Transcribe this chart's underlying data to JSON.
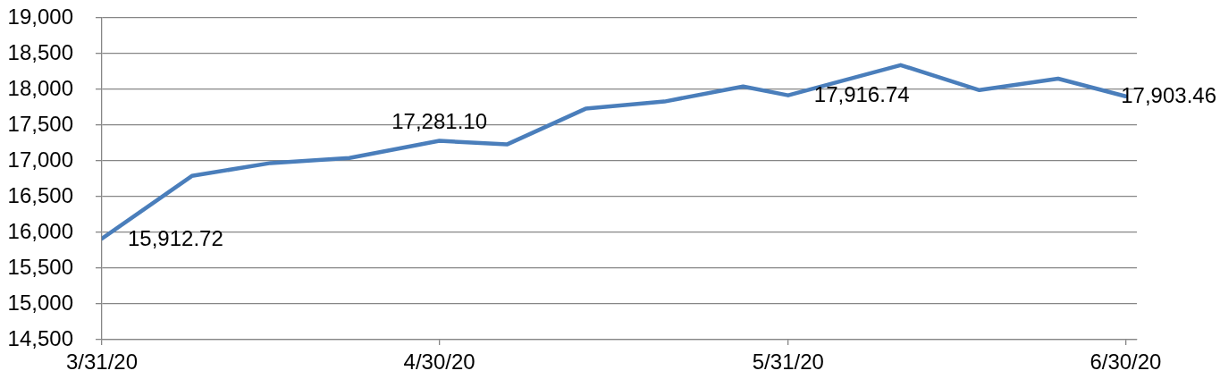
{
  "chart_data": {
    "type": "line",
    "x": [
      "2020-03-31",
      "2020-04-08",
      "2020-04-15",
      "2020-04-22",
      "2020-04-30",
      "2020-05-06",
      "2020-05-13",
      "2020-05-20",
      "2020-05-27",
      "2020-05-31",
      "2020-06-10",
      "2020-06-17",
      "2020-06-24",
      "2020-06-30"
    ],
    "series": [
      {
        "color": "#4a7ebb",
        "values": [
          15912.72,
          16790,
          16970,
          17040,
          17281.1,
          17230,
          17730,
          17830,
          18040,
          17916.74,
          18340,
          17990,
          18150,
          17903.46
        ],
        "value_labels": [
          "15,912.72",
          null,
          null,
          null,
          "17,281.10",
          null,
          null,
          null,
          null,
          "17,916.74",
          null,
          null,
          null,
          "17,903.46"
        ]
      }
    ],
    "xlim": [
      "2020-03-31",
      "2020-07-01"
    ],
    "xticks": [
      {
        "value": "2020-03-31",
        "label": "3/31/20"
      },
      {
        "value": "2020-04-30",
        "label": "4/30/20"
      },
      {
        "value": "2020-05-31",
        "label": "5/31/20"
      },
      {
        "value": "2020-06-30",
        "label": "6/30/20"
      }
    ],
    "ylim": [
      14500,
      19000
    ],
    "yticks": [
      {
        "value": 14500,
        "label": "14,500"
      },
      {
        "value": 15000,
        "label": "15,000"
      },
      {
        "value": 15500,
        "label": "15,500"
      },
      {
        "value": 16000,
        "label": "16,000"
      },
      {
        "value": 16500,
        "label": "16,500"
      },
      {
        "value": 17000,
        "label": "17,000"
      },
      {
        "value": 17500,
        "label": "17,500"
      },
      {
        "value": 18000,
        "label": "18,000"
      },
      {
        "value": 18500,
        "label": "18,500"
      },
      {
        "value": 19000,
        "label": "19,000"
      }
    ],
    "grid": "y",
    "legend": false,
    "marker": "none",
    "line_style": "solid"
  }
}
